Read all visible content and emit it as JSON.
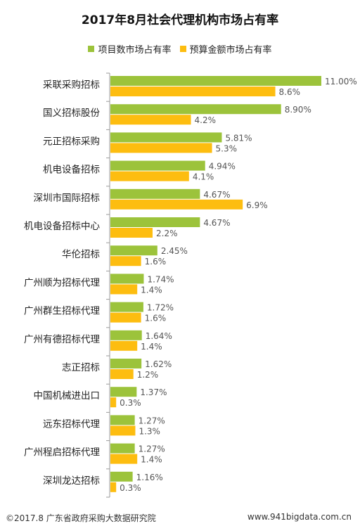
{
  "chart_data": {
    "type": "bar",
    "orientation": "horizontal",
    "title": "2017年8月社会代理机构市场占有率",
    "categories": [
      "采联采购招标",
      "国义招标股份",
      "元正招标采购",
      "机电设备招标",
      "深圳市国际招标",
      "机电设备招标中心",
      "华伦招标",
      "广州顺为招标代理",
      "广州群生招标代理",
      "广州有德招标代理",
      "志正招标",
      "中国机械进出口",
      "远东招标代理",
      "广州程启招标代理",
      "深圳龙达招标"
    ],
    "series": [
      {
        "name": "项目数市场占有率",
        "color": "#9cc33b",
        "values": [
          11.0,
          8.9,
          5.81,
          4.94,
          4.67,
          4.67,
          2.45,
          1.74,
          1.72,
          1.64,
          1.62,
          1.37,
          1.27,
          1.27,
          1.16
        ],
        "labels": [
          "11.00%",
          "8.90%",
          "5.81%",
          "4.94%",
          "4.67%",
          "4.67%",
          "2.45%",
          "1.74%",
          "1.72%",
          "1.64%",
          "1.62%",
          "1.37%",
          "1.27%",
          "1.27%",
          "1.16%"
        ]
      },
      {
        "name": "预算金额市场占有率",
        "color": "#fdbd10",
        "values": [
          8.6,
          4.2,
          5.3,
          4.1,
          6.9,
          2.2,
          1.6,
          1.4,
          1.6,
          1.4,
          1.2,
          0.3,
          1.3,
          1.4,
          0.3
        ],
        "labels": [
          "8.6%",
          "4.2%",
          "5.3%",
          "4.1%",
          "6.9%",
          "2.2%",
          "1.6%",
          "1.4%",
          "1.6%",
          "1.4%",
          "1.2%",
          "0.3%",
          "1.3%",
          "1.4%",
          "0.3%"
        ]
      }
    ],
    "xlim": [
      0,
      11.6
    ],
    "legend_position": "top-center",
    "grid": false
  },
  "footer": {
    "source": "©2017.8 广东省政府采购大数据研究院",
    "website": "www.941bigdata.com.cn"
  }
}
